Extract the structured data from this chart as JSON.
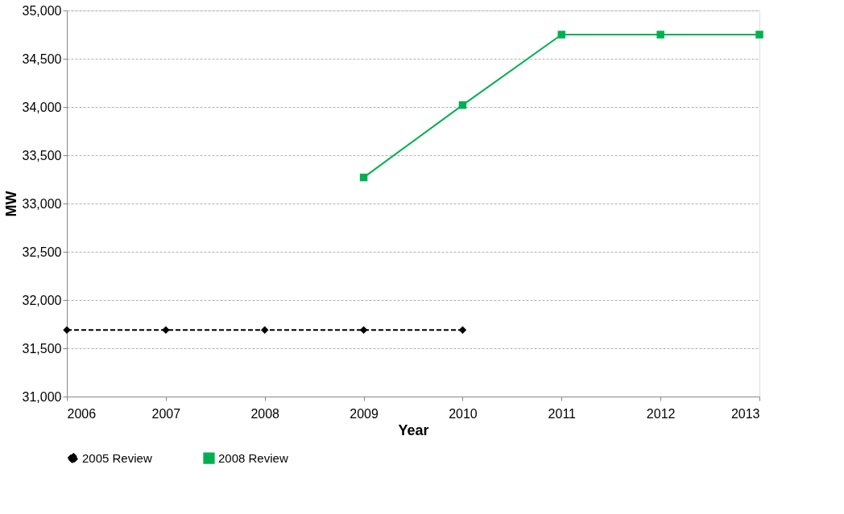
{
  "chart_data": {
    "type": "line",
    "xlabel": "Year",
    "ylabel": "MW",
    "xlim": [
      2006,
      2013
    ],
    "xticks": [
      2006,
      2007,
      2008,
      2009,
      2010,
      2011,
      2012,
      2013
    ],
    "ylim": [
      31000,
      35000
    ],
    "yticks": [
      {
        "value": 31000,
        "label": "31,000"
      },
      {
        "value": 31500,
        "label": "31,500"
      },
      {
        "value": 32000,
        "label": "32,000"
      },
      {
        "value": 32500,
        "label": "32,500"
      },
      {
        "value": 33000,
        "label": "33,000"
      },
      {
        "value": 33500,
        "label": "33,500"
      },
      {
        "value": 34000,
        "label": "34,000"
      },
      {
        "value": 34500,
        "label": "34,500"
      },
      {
        "value": 35000,
        "label": "35,000"
      }
    ],
    "grid": "y",
    "legend": "bottom",
    "series": [
      {
        "name": "2005 Review",
        "color": "#000000",
        "marker": "diamond",
        "line_style": "dashed",
        "x": [
          2006,
          2007,
          2008,
          2009,
          2010
        ],
        "values": [
          31690,
          31690,
          31690,
          31690,
          31690
        ]
      },
      {
        "name": "2008 Review",
        "color": "#00b050",
        "marker": "square",
        "line_style": "solid",
        "x": [
          2009,
          2010,
          2011,
          2012,
          2013
        ],
        "values": [
          33270,
          34020,
          34750,
          34750,
          34750
        ]
      }
    ]
  }
}
